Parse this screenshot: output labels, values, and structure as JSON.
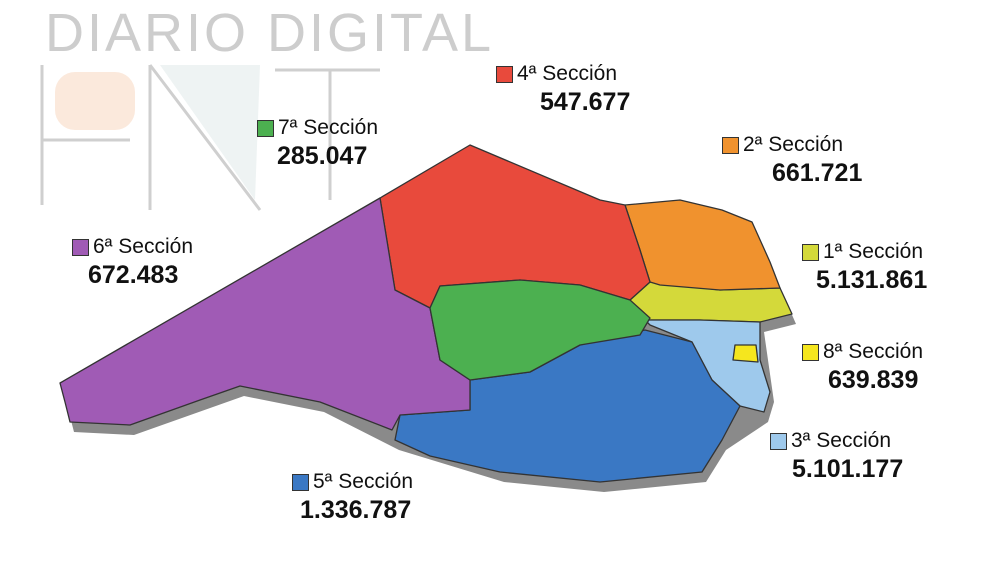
{
  "watermark": {
    "text": "DIARIO DIGITAL",
    "logo": "PNT"
  },
  "sections": [
    {
      "id": "1",
      "name": "1ª Sección",
      "value": "5.131.861",
      "color": "#d4d93a"
    },
    {
      "id": "2",
      "name": "2ª Sección",
      "value": "661.721",
      "color": "#f0922e"
    },
    {
      "id": "3",
      "name": "3ª Sección",
      "value": "5.101.177",
      "color": "#9ec9ec"
    },
    {
      "id": "4",
      "name": "4ª Sección",
      "value": "547.677",
      "color": "#e84a3c"
    },
    {
      "id": "5",
      "name": "5ª Sección",
      "value": "1.336.787",
      "color": "#3a78c4"
    },
    {
      "id": "6",
      "name": "6ª Sección",
      "value": "672.483",
      "color": "#a05bb5"
    },
    {
      "id": "7",
      "name": "7ª Sección",
      "value": "285.047",
      "color": "#4cb050"
    },
    {
      "id": "8",
      "name": "8ª Sección",
      "value": "639.839",
      "color": "#f5e61e"
    }
  ]
}
